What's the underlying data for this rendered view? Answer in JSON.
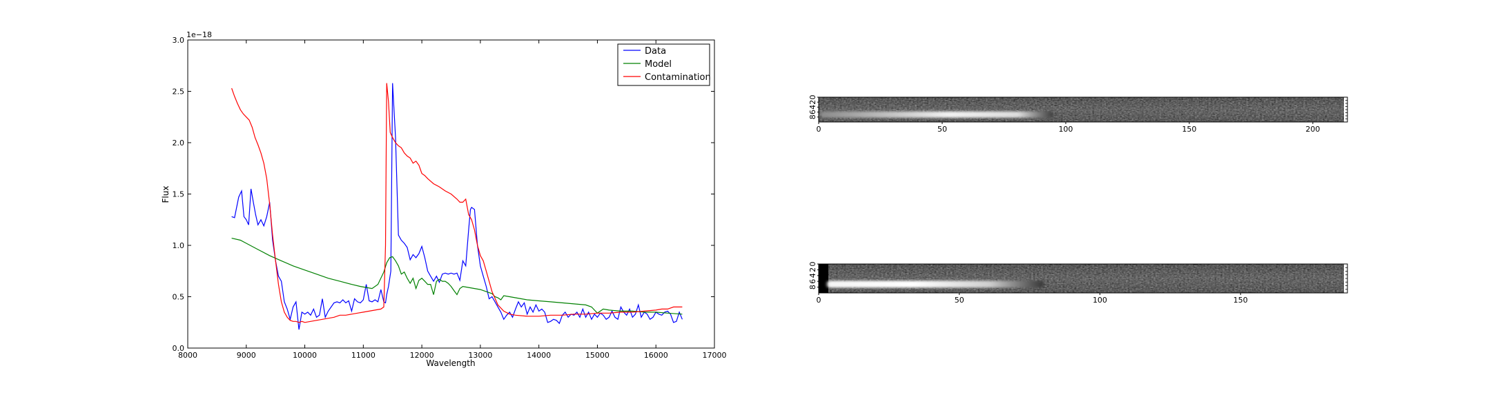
{
  "chart_data": [
    {
      "type": "line",
      "title": "",
      "xlabel": "Wavelength",
      "ylabel": "Flux",
      "y_scale_label": "1e−18",
      "xlim": [
        8000,
        17000
      ],
      "ylim": [
        0.0,
        3.0
      ],
      "xticks": [
        "8000",
        "9000",
        "10000",
        "11000",
        "12000",
        "13000",
        "14000",
        "15000",
        "16000",
        "17000"
      ],
      "yticks": [
        "0.0",
        "0.5",
        "1.0",
        "1.5",
        "2.0",
        "2.5",
        "3.0"
      ],
      "grid": false,
      "legend": "top-right",
      "series": [
        {
          "name": "Data",
          "color": "#0000ff",
          "x": [
            8750,
            8800,
            8870,
            8920,
            8960,
            9000,
            9040,
            9080,
            9120,
            9160,
            9200,
            9250,
            9300,
            9350,
            9400,
            9450,
            9500,
            9550,
            9600,
            9650,
            9700,
            9750,
            9800,
            9850,
            9900,
            9950,
            10000,
            10050,
            10100,
            10150,
            10200,
            10250,
            10300,
            10350,
            10400,
            10450,
            10500,
            10550,
            10600,
            10650,
            10700,
            10750,
            10800,
            10850,
            10900,
            10950,
            11000,
            11050,
            11100,
            11150,
            11200,
            11250,
            11300,
            11350,
            11380,
            11400,
            11430,
            11470,
            11500,
            11550,
            11600,
            11650,
            11700,
            11750,
            11800,
            11850,
            11900,
            11950,
            12000,
            12050,
            12100,
            12150,
            12200,
            12250,
            12300,
            12350,
            12400,
            12450,
            12500,
            12550,
            12600,
            12650,
            12700,
            12750,
            12800,
            12830,
            12850,
            12900,
            12950,
            13000,
            13050,
            13100,
            13150,
            13200,
            13250,
            13300,
            13350,
            13400,
            13450,
            13500,
            13550,
            13600,
            13650,
            13700,
            13750,
            13800,
            13850,
            13900,
            13950,
            14000,
            14050,
            14100,
            14150,
            14200,
            14250,
            14300,
            14350,
            14400,
            14450,
            14500,
            14550,
            14600,
            14650,
            14700,
            14750,
            14800,
            14850,
            14900,
            14950,
            15000,
            15050,
            15100,
            15150,
            15200,
            15250,
            15300,
            15350,
            15400,
            15450,
            15500,
            15550,
            15600,
            15650,
            15700,
            15750,
            15800,
            15850,
            15900,
            15950,
            16000,
            16050,
            16100,
            16150,
            16200,
            16250,
            16300,
            16350,
            16400,
            16450
          ],
          "y": [
            1.28,
            1.27,
            1.47,
            1.53,
            1.28,
            1.25,
            1.2,
            1.55,
            1.42,
            1.3,
            1.2,
            1.25,
            1.19,
            1.28,
            1.42,
            1.05,
            0.85,
            0.7,
            0.65,
            0.45,
            0.38,
            0.28,
            0.4,
            0.45,
            0.18,
            0.35,
            0.33,
            0.35,
            0.32,
            0.38,
            0.3,
            0.32,
            0.48,
            0.3,
            0.36,
            0.4,
            0.44,
            0.45,
            0.44,
            0.47,
            0.44,
            0.46,
            0.36,
            0.48,
            0.45,
            0.44,
            0.47,
            0.62,
            0.46,
            0.45,
            0.47,
            0.45,
            0.57,
            0.45,
            0.44,
            0.52,
            0.6,
            0.75,
            2.58,
            2.05,
            1.1,
            1.05,
            1.02,
            0.98,
            0.86,
            0.91,
            0.88,
            0.92,
            0.99,
            0.88,
            0.75,
            0.7,
            0.65,
            0.7,
            0.64,
            0.72,
            0.73,
            0.72,
            0.73,
            0.72,
            0.73,
            0.66,
            0.85,
            0.8,
            1.15,
            1.35,
            1.37,
            1.35,
            1.0,
            0.8,
            0.7,
            0.6,
            0.48,
            0.5,
            0.45,
            0.4,
            0.35,
            0.28,
            0.32,
            0.35,
            0.3,
            0.38,
            0.45,
            0.4,
            0.44,
            0.33,
            0.4,
            0.35,
            0.42,
            0.36,
            0.38,
            0.35,
            0.25,
            0.26,
            0.28,
            0.27,
            0.24,
            0.32,
            0.35,
            0.3,
            0.33,
            0.32,
            0.35,
            0.3,
            0.38,
            0.3,
            0.35,
            0.28,
            0.33,
            0.3,
            0.34,
            0.32,
            0.28,
            0.3,
            0.36,
            0.3,
            0.28,
            0.4,
            0.35,
            0.32,
            0.38,
            0.3,
            0.33,
            0.42,
            0.3,
            0.35,
            0.33,
            0.28,
            0.3,
            0.35,
            0.33,
            0.32,
            0.35,
            0.36,
            0.33,
            0.25,
            0.26,
            0.35,
            0.28
          ]
        },
        {
          "name": "Model",
          "color": "#008000",
          "x": [
            8750,
            8900,
            9000,
            9200,
            9400,
            9600,
            9800,
            10000,
            10200,
            10400,
            10600,
            10800,
            10950,
            11050,
            11150,
            11250,
            11350,
            11400,
            11450,
            11500,
            11550,
            11600,
            11650,
            11700,
            11750,
            11800,
            11850,
            11900,
            11950,
            12000,
            12050,
            12100,
            12150,
            12200,
            12250,
            12300,
            12350,
            12400,
            12450,
            12500,
            12550,
            12600,
            12650,
            12700,
            12800,
            12900,
            13000,
            13100,
            13200,
            13250,
            13300,
            13350,
            13400,
            13500,
            13600,
            13800,
            14000,
            14200,
            14400,
            14600,
            14800,
            14900,
            14950,
            15000,
            15100,
            15200,
            15400,
            15600,
            15800,
            16000,
            16200,
            16450
          ],
          "y": [
            1.07,
            1.05,
            1.02,
            0.96,
            0.9,
            0.85,
            0.8,
            0.76,
            0.72,
            0.68,
            0.65,
            0.62,
            0.6,
            0.59,
            0.58,
            0.62,
            0.74,
            0.83,
            0.88,
            0.89,
            0.85,
            0.8,
            0.72,
            0.74,
            0.68,
            0.63,
            0.68,
            0.58,
            0.66,
            0.68,
            0.65,
            0.62,
            0.62,
            0.52,
            0.65,
            0.67,
            0.65,
            0.65,
            0.63,
            0.6,
            0.56,
            0.52,
            0.58,
            0.6,
            0.59,
            0.58,
            0.57,
            0.55,
            0.53,
            0.5,
            0.49,
            0.47,
            0.51,
            0.5,
            0.49,
            0.47,
            0.46,
            0.45,
            0.44,
            0.43,
            0.42,
            0.4,
            0.37,
            0.34,
            0.38,
            0.37,
            0.36,
            0.36,
            0.35,
            0.35,
            0.34,
            0.33
          ]
        },
        {
          "name": "Contamination",
          "color": "#ff0000",
          "x": [
            8750,
            8800,
            8850,
            8900,
            8950,
            9000,
            9050,
            9100,
            9150,
            9200,
            9250,
            9300,
            9350,
            9400,
            9450,
            9500,
            9550,
            9600,
            9650,
            9700,
            9750,
            9800,
            9850,
            9900,
            9950,
            10000,
            10100,
            10200,
            10300,
            10400,
            10500,
            10600,
            10700,
            10800,
            10900,
            11000,
            11100,
            11200,
            11300,
            11350,
            11380,
            11400,
            11430,
            11460,
            11500,
            11550,
            11600,
            11650,
            11700,
            11750,
            11800,
            11850,
            11900,
            11950,
            12000,
            12050,
            12100,
            12200,
            12300,
            12400,
            12500,
            12600,
            12650,
            12700,
            12750,
            12800,
            12850,
            12900,
            12950,
            13000,
            13050,
            13100,
            13200,
            13300,
            13400,
            13500,
            13600,
            13800,
            14000,
            14200,
            14400,
            14600,
            14800,
            15000,
            15200,
            15400,
            15600,
            15800,
            16000,
            16100,
            16200,
            16300,
            16450
          ],
          "y": [
            2.53,
            2.45,
            2.38,
            2.32,
            2.28,
            2.25,
            2.22,
            2.15,
            2.05,
            1.98,
            1.9,
            1.8,
            1.65,
            1.4,
            1.1,
            0.85,
            0.62,
            0.45,
            0.35,
            0.3,
            0.27,
            0.26,
            0.26,
            0.25,
            0.26,
            0.25,
            0.26,
            0.27,
            0.28,
            0.29,
            0.3,
            0.32,
            0.32,
            0.33,
            0.34,
            0.35,
            0.36,
            0.37,
            0.38,
            0.4,
            1.0,
            2.58,
            2.4,
            2.1,
            2.05,
            2.0,
            1.97,
            1.95,
            1.9,
            1.87,
            1.85,
            1.8,
            1.82,
            1.78,
            1.7,
            1.68,
            1.65,
            1.6,
            1.57,
            1.53,
            1.5,
            1.45,
            1.42,
            1.42,
            1.45,
            1.3,
            1.25,
            1.15,
            1.0,
            0.9,
            0.85,
            0.75,
            0.55,
            0.42,
            0.36,
            0.33,
            0.32,
            0.31,
            0.31,
            0.32,
            0.32,
            0.33,
            0.33,
            0.34,
            0.34,
            0.35,
            0.35,
            0.36,
            0.37,
            0.38,
            0.38,
            0.4,
            0.4
          ]
        }
      ]
    },
    {
      "type": "heatmap",
      "colormap": "gray",
      "xlim": [
        0,
        214
      ],
      "ylim": [
        0,
        10
      ],
      "xticks": [
        "0",
        "50",
        "100",
        "150",
        "200"
      ],
      "yticks": [
        "0",
        "2",
        "4",
        "6",
        "8"
      ],
      "trace_row": 7,
      "trace_extent": [
        0,
        95
      ],
      "peak_x": 75
    },
    {
      "type": "heatmap",
      "colormap": "gray",
      "xlim": [
        0,
        188
      ],
      "ylim": [
        0,
        10
      ],
      "xticks": [
        "0",
        "50",
        "100",
        "150"
      ],
      "yticks": [
        "0",
        "2",
        "4",
        "6",
        "8"
      ],
      "trace_row": 7,
      "trace_extent": [
        3,
        80
      ],
      "peak_x": 45
    }
  ]
}
